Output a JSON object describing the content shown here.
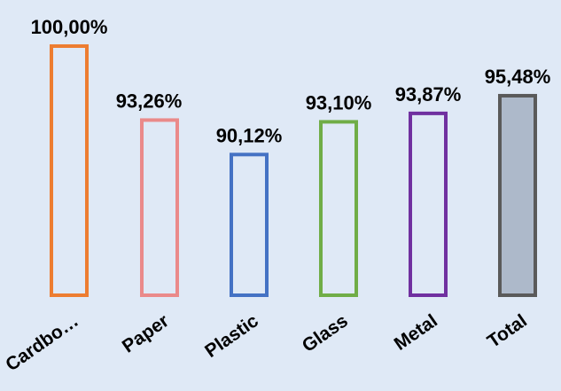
{
  "chart_data": {
    "type": "bar",
    "title": "",
    "xlabel": "",
    "ylabel": "",
    "categories": [
      "Cardbo…",
      "Paper",
      "Plastic",
      "Glass",
      "Metal",
      "Total"
    ],
    "values": [
      100.0,
      93.26,
      90.12,
      93.1,
      93.87,
      95.48
    ],
    "value_labels": [
      "100,00%",
      "93,26%",
      "90,12%",
      "93,10%",
      "93,87%",
      "95,48%"
    ],
    "ylim": [
      77.3,
      100
    ],
    "grid": false,
    "legend": "none",
    "bar_colors": [
      "#ed7d31",
      "#ea8a8a",
      "#4472c4",
      "#70ad47",
      "#7030a0",
      "#5a5a5a"
    ],
    "bar_fills": [
      "none",
      "none",
      "none",
      "none",
      "none",
      "#adb9ca"
    ],
    "background_color": "#dfe9f6"
  }
}
